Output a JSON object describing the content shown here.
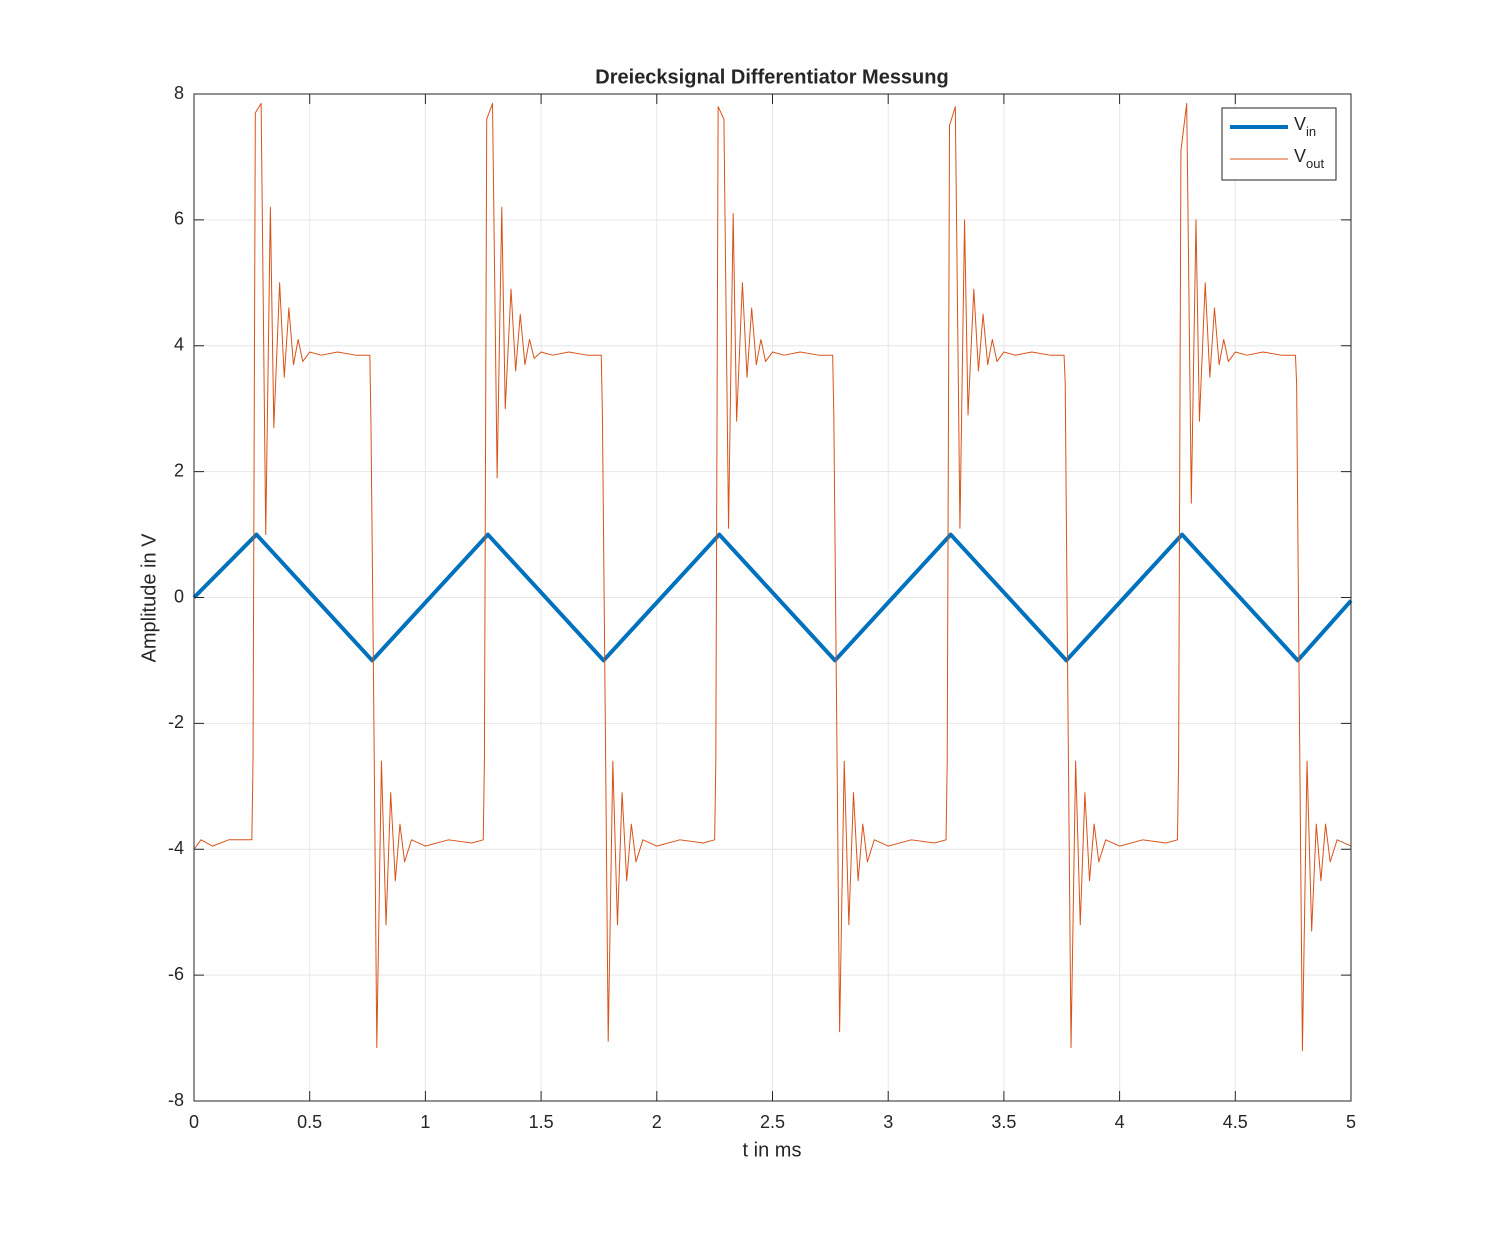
{
  "chart_data": {
    "type": "line",
    "title": "Dreiecksignal Differentiator Messung",
    "xlabel": "t in ms",
    "ylabel": "Amplitude in V",
    "xlim": [
      0,
      5
    ],
    "ylim": [
      -8,
      8
    ],
    "xticks": [
      0,
      0.5,
      1,
      1.5,
      2,
      2.5,
      3,
      3.5,
      4,
      4.5,
      5
    ],
    "yticks": [
      -8,
      -6,
      -4,
      -2,
      0,
      2,
      4,
      6,
      8
    ],
    "grid": true,
    "legend_position": "upper-right",
    "series": [
      {
        "name": "V",
        "subscript": "in",
        "color": "#0072BD",
        "line_width": 4,
        "x": [
          0,
          0.27,
          0.77,
          1.27,
          1.77,
          2.27,
          2.77,
          3.27,
          3.77,
          4.27,
          4.77,
          5
        ],
        "values": [
          0,
          1,
          -1,
          1,
          -1,
          1,
          -1,
          1,
          -1,
          1,
          -1,
          -0.05
        ]
      },
      {
        "name": "V",
        "subscript": "out",
        "color": "#D95319",
        "line_width": 1,
        "x": [
          0,
          0.03,
          0.08,
          0.15,
          0.25,
          0.255,
          0.265,
          0.29,
          0.31,
          0.33,
          0.345,
          0.37,
          0.39,
          0.41,
          0.43,
          0.45,
          0.47,
          0.5,
          0.55,
          0.62,
          0.7,
          0.76,
          0.765,
          0.775,
          0.79,
          0.81,
          0.83,
          0.85,
          0.87,
          0.89,
          0.91,
          0.94,
          1.0,
          1.1,
          1.2,
          1.25,
          1.255,
          1.265,
          1.29,
          1.31,
          1.33,
          1.345,
          1.37,
          1.39,
          1.41,
          1.43,
          1.45,
          1.47,
          1.5,
          1.55,
          1.62,
          1.7,
          1.76,
          1.765,
          1.775,
          1.79,
          1.81,
          1.83,
          1.85,
          1.87,
          1.89,
          1.91,
          1.94,
          2.0,
          2.1,
          2.2,
          2.25,
          2.255,
          2.265,
          2.29,
          2.31,
          2.33,
          2.345,
          2.37,
          2.39,
          2.41,
          2.43,
          2.45,
          2.47,
          2.5,
          2.55,
          2.62,
          2.7,
          2.76,
          2.765,
          2.775,
          2.79,
          2.81,
          2.83,
          2.85,
          2.87,
          2.89,
          2.91,
          2.94,
          3.0,
          3.1,
          3.2,
          3.25,
          3.255,
          3.265,
          3.29,
          3.31,
          3.33,
          3.345,
          3.37,
          3.39,
          3.41,
          3.43,
          3.45,
          3.47,
          3.5,
          3.55,
          3.62,
          3.7,
          3.76,
          3.765,
          3.775,
          3.79,
          3.81,
          3.83,
          3.85,
          3.87,
          3.89,
          3.91,
          3.94,
          4.0,
          4.1,
          4.2,
          4.25,
          4.255,
          4.265,
          4.29,
          4.31,
          4.33,
          4.345,
          4.37,
          4.39,
          4.41,
          4.43,
          4.45,
          4.47,
          4.5,
          4.55,
          4.62,
          4.7,
          4.76,
          4.765,
          4.775,
          4.79,
          4.81,
          4.83,
          4.85,
          4.87,
          4.89,
          4.91,
          4.94,
          5.0
        ],
        "values": [
          -4.0,
          -3.85,
          -3.95,
          -3.85,
          -3.85,
          -2.6,
          7.7,
          7.85,
          1.0,
          6.2,
          2.7,
          5.0,
          3.5,
          4.6,
          3.7,
          4.1,
          3.75,
          3.9,
          3.85,
          3.9,
          3.85,
          3.85,
          2.7,
          -1.0,
          -7.15,
          -2.6,
          -5.2,
          -3.1,
          -4.5,
          -3.6,
          -4.2,
          -3.85,
          -3.95,
          -3.85,
          -3.9,
          -3.85,
          -2.6,
          7.6,
          7.85,
          1.9,
          6.2,
          3.0,
          4.9,
          3.6,
          4.5,
          3.7,
          4.1,
          3.8,
          3.9,
          3.85,
          3.9,
          3.85,
          3.85,
          2.9,
          -1.0,
          -7.05,
          -2.6,
          -5.2,
          -3.1,
          -4.5,
          -3.6,
          -4.2,
          -3.85,
          -3.95,
          -3.85,
          -3.9,
          -3.85,
          -2.6,
          7.8,
          7.6,
          1.1,
          6.1,
          2.8,
          5.0,
          3.5,
          4.6,
          3.7,
          4.1,
          3.75,
          3.9,
          3.85,
          3.9,
          3.85,
          3.85,
          2.9,
          -1.0,
          -6.9,
          -2.6,
          -5.2,
          -3.1,
          -4.5,
          -3.6,
          -4.2,
          -3.85,
          -3.95,
          -3.85,
          -3.9,
          -3.85,
          -2.6,
          7.5,
          7.8,
          1.1,
          6.0,
          2.9,
          4.9,
          3.6,
          4.5,
          3.7,
          4.1,
          3.75,
          3.9,
          3.85,
          3.9,
          3.85,
          3.85,
          3.4,
          -1.0,
          -7.15,
          -2.6,
          -5.2,
          -3.1,
          -4.5,
          -3.6,
          -4.2,
          -3.85,
          -3.95,
          -3.85,
          -3.9,
          -3.85,
          -2.6,
          7.1,
          7.85,
          1.5,
          6.0,
          2.8,
          5.0,
          3.5,
          4.6,
          3.7,
          4.1,
          3.75,
          3.9,
          3.85,
          3.9,
          3.85,
          3.85,
          3.4,
          -1.0,
          -7.2,
          -2.6,
          -5.3,
          -3.6,
          -4.5,
          -3.6,
          -4.2,
          -3.85,
          -3.95
        ]
      }
    ]
  }
}
